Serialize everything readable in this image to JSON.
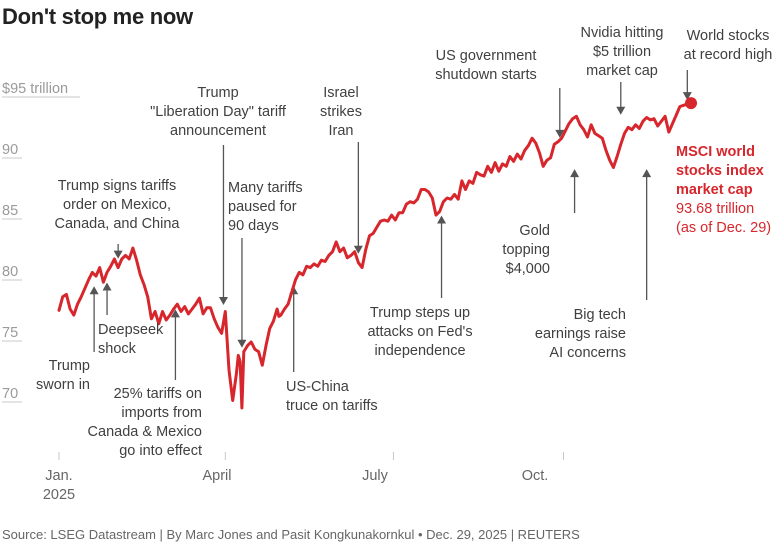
{
  "title": "Don't stop me now",
  "source": "Source: LSEG Datastream | By Marc Jones and Pasit Kongkunakornkul • Dec. 29, 2025 | REUTERS",
  "colors": {
    "line": "#d7262c",
    "arrow": "#555555",
    "grid": "#c8c8c8",
    "tick": "#9a9a9a"
  },
  "end_label": {
    "bold_lines": [
      "MSCI world",
      "stocks index",
      "market cap"
    ],
    "value": "93.68 trillion",
    "asof": "(as of Dec. 29)"
  },
  "chart_data": {
    "type": "line",
    "title": "Don't stop me now",
    "series_name": "MSCI world stocks index market cap",
    "unit": "$ trillion",
    "ylim": [
      67,
      97
    ],
    "y_ticks": [
      {
        "v": 95,
        "label": "$95",
        "suffix": " trillion"
      },
      {
        "v": 90,
        "label": "90"
      },
      {
        "v": 85,
        "label": "85"
      },
      {
        "v": 80,
        "label": "80"
      },
      {
        "v": 75,
        "label": "75"
      },
      {
        "v": 70,
        "label": "70"
      }
    ],
    "x_ticks": [
      {
        "d": 0,
        "lines": [
          "Jan.",
          "2025"
        ]
      },
      {
        "d": 90,
        "lines": [
          "April"
        ]
      },
      {
        "d": 181,
        "lines": [
          "July"
        ]
      },
      {
        "d": 273,
        "lines": [
          "Oct."
        ]
      }
    ],
    "x_range_days": [
      0,
      366
    ],
    "points": [
      [
        0,
        76.7
      ],
      [
        2,
        77.8
      ],
      [
        4,
        78.0
      ],
      [
        6,
        76.8
      ],
      [
        8,
        76.3
      ],
      [
        10,
        77.2
      ],
      [
        12,
        77.8
      ],
      [
        14,
        78.5
      ],
      [
        16,
        79.2
      ],
      [
        18,
        79.8
      ],
      [
        20,
        79.5
      ],
      [
        22,
        80.2
      ],
      [
        24,
        79.0
      ],
      [
        26,
        79.8
      ],
      [
        28,
        80.3
      ],
      [
        30,
        80.9
      ],
      [
        32,
        80.2
      ],
      [
        34,
        80.9
      ],
      [
        36,
        81.2
      ],
      [
        38,
        80.9
      ],
      [
        40,
        81.8
      ],
      [
        42,
        80.8
      ],
      [
        44,
        79.6
      ],
      [
        46,
        78.8
      ],
      [
        48,
        77.8
      ],
      [
        50,
        76.0
      ],
      [
        52,
        76.6
      ],
      [
        54,
        75.6
      ],
      [
        56,
        76.6
      ],
      [
        58,
        75.9
      ],
      [
        60,
        76.3
      ],
      [
        62,
        76.8
      ],
      [
        64,
        77.2
      ],
      [
        66,
        76.6
      ],
      [
        68,
        77.0
      ],
      [
        70,
        76.4
      ],
      [
        72,
        76.8
      ],
      [
        74,
        77.2
      ],
      [
        76,
        77.7
      ],
      [
        78,
        76.4
      ],
      [
        80,
        76.9
      ],
      [
        82,
        76.9
      ],
      [
        84,
        76.0
      ],
      [
        86,
        75.3
      ],
      [
        88,
        74.8
      ],
      [
        90,
        76.6
      ],
      [
        92,
        71.8
      ],
      [
        94,
        69.3
      ],
      [
        96,
        71.5
      ],
      [
        97,
        73.0
      ],
      [
        98,
        72.5
      ],
      [
        99,
        68.7
      ],
      [
        100,
        73.3
      ],
      [
        102,
        73.8
      ],
      [
        104,
        74.1
      ],
      [
        106,
        73.5
      ],
      [
        108,
        73.3
      ],
      [
        110,
        72.2
      ],
      [
        112,
        73.8
      ],
      [
        114,
        75.2
      ],
      [
        116,
        75.8
      ],
      [
        118,
        76.8
      ],
      [
        119,
        76.2
      ],
      [
        120,
        76.3
      ],
      [
        122,
        76.8
      ],
      [
        124,
        77.2
      ],
      [
        126,
        78.2
      ],
      [
        128,
        79.2
      ],
      [
        130,
        79.8
      ],
      [
        132,
        79.6
      ],
      [
        134,
        80.3
      ],
      [
        136,
        80.2
      ],
      [
        138,
        80.5
      ],
      [
        140,
        80.3
      ],
      [
        142,
        80.8
      ],
      [
        144,
        80.7
      ],
      [
        146,
        81.2
      ],
      [
        148,
        81.5
      ],
      [
        150,
        82.3
      ],
      [
        152,
        81.5
      ],
      [
        154,
        81.8
      ],
      [
        156,
        81.0
      ],
      [
        158,
        81.2
      ],
      [
        160,
        81.5
      ],
      [
        162,
        80.6
      ],
      [
        164,
        80.2
      ],
      [
        166,
        81.7
      ],
      [
        168,
        82.8
      ],
      [
        170,
        83.0
      ],
      [
        172,
        83.5
      ],
      [
        174,
        84.0
      ],
      [
        176,
        84.1
      ],
      [
        178,
        84.0
      ],
      [
        180,
        84.5
      ],
      [
        182,
        84.1
      ],
      [
        184,
        84.7
      ],
      [
        186,
        84.7
      ],
      [
        188,
        85.4
      ],
      [
        190,
        85.6
      ],
      [
        192,
        85.5
      ],
      [
        194,
        85.8
      ],
      [
        196,
        86.6
      ],
      [
        198,
        86.6
      ],
      [
        200,
        86.4
      ],
      [
        202,
        85.9
      ],
      [
        204,
        84.5
      ],
      [
        206,
        84.8
      ],
      [
        208,
        85.6
      ],
      [
        210,
        85.9
      ],
      [
        212,
        85.8
      ],
      [
        214,
        86.2
      ],
      [
        216,
        85.8
      ],
      [
        218,
        87.3
      ],
      [
        220,
        86.6
      ],
      [
        222,
        87.3
      ],
      [
        224,
        87.1
      ],
      [
        226,
        88.0
      ],
      [
        228,
        87.8
      ],
      [
        230,
        87.7
      ],
      [
        232,
        88.5
      ],
      [
        234,
        88.0
      ],
      [
        236,
        88.8
      ],
      [
        238,
        88.1
      ],
      [
        240,
        88.7
      ],
      [
        242,
        88.5
      ],
      [
        244,
        89.3
      ],
      [
        246,
        88.9
      ],
      [
        248,
        89.5
      ],
      [
        250,
        89.1
      ],
      [
        252,
        89.8
      ],
      [
        254,
        90.2
      ],
      [
        256,
        90.8
      ],
      [
        258,
        90.4
      ],
      [
        260,
        89.6
      ],
      [
        262,
        88.5
      ],
      [
        264,
        89.0
      ],
      [
        266,
        89.2
      ],
      [
        268,
        90.3
      ],
      [
        270,
        90.5
      ],
      [
        272,
        90.8
      ],
      [
        274,
        91.4
      ],
      [
        276,
        92.0
      ],
      [
        278,
        92.4
      ],
      [
        280,
        92.6
      ],
      [
        282,
        91.9
      ],
      [
        284,
        91.5
      ],
      [
        286,
        90.9
      ],
      [
        288,
        91.9
      ],
      [
        290,
        91.2
      ],
      [
        292,
        91.0
      ],
      [
        294,
        90.8
      ],
      [
        296,
        89.8
      ],
      [
        298,
        89.0
      ],
      [
        300,
        88.4
      ],
      [
        302,
        89.3
      ],
      [
        304,
        90.3
      ],
      [
        306,
        91.2
      ],
      [
        308,
        91.7
      ],
      [
        310,
        91.5
      ],
      [
        312,
        91.9
      ],
      [
        314,
        91.6
      ],
      [
        316,
        92.2
      ],
      [
        318,
        92.5
      ],
      [
        320,
        92.3
      ],
      [
        322,
        92.4
      ],
      [
        324,
        91.8
      ],
      [
        326,
        92.2
      ],
      [
        328,
        92.6
      ],
      [
        330,
        91.3
      ],
      [
        332,
        92.0
      ],
      [
        334,
        92.7
      ],
      [
        336,
        93.4
      ],
      [
        338,
        93.5
      ],
      [
        340,
        93.6
      ],
      [
        342,
        93.68
      ]
    ],
    "end_point": {
      "d": 342,
      "v": 93.68
    },
    "annotations": [
      {
        "text": [
          "Trump",
          "sworn in"
        ],
        "d": 19,
        "v": 79.0
      },
      {
        "text": [
          "Deepseek",
          "shock"
        ],
        "d": 26,
        "v": 79.3
      },
      {
        "text": [
          "Trump signs tariffs",
          "order on Mexico,",
          "Canada, and China"
        ],
        "d": 32,
        "v": 80.6
      },
      {
        "text": [
          "25% tariffs on",
          "imports from",
          "Canada & Mexico",
          "go into effect"
        ],
        "d": 63,
        "v": 77.1
      },
      {
        "text": [
          "Trump",
          "\"Liberation Day\" tariff",
          "announcement"
        ],
        "d": 89,
        "v": 76.8
      },
      {
        "text": [
          "Many tariffs",
          "paused for",
          "90 days"
        ],
        "d": 99,
        "v": 73.3
      },
      {
        "text": [
          "US-China",
          "truce on tariffs"
        ],
        "d": 127,
        "v": 79.0
      },
      {
        "text": [
          "Israel",
          "strikes",
          "Iran"
        ],
        "d": 162,
        "v": 81.0
      },
      {
        "text": [
          "Trump steps up",
          "attacks on Fed's",
          "independence"
        ],
        "d": 207,
        "v": 84.8
      },
      {
        "text": [
          "US government",
          "shutdown starts"
        ],
        "d": 271,
        "v": 90.5
      },
      {
        "text": [
          "Gold",
          "topping",
          "$4,000"
        ],
        "d": 279,
        "v": 88.6
      },
      {
        "text": [
          "Nvidia hitting",
          "$5 trillion",
          "market cap"
        ],
        "d": 304,
        "v": 92.4
      },
      {
        "text": [
          "Big tech",
          "earnings raise",
          "AI concerns"
        ],
        "d": 318,
        "v": 88.6
      },
      {
        "text": [
          "World stocks",
          "at record high"
        ],
        "d": 340,
        "v": 93.6
      }
    ]
  }
}
